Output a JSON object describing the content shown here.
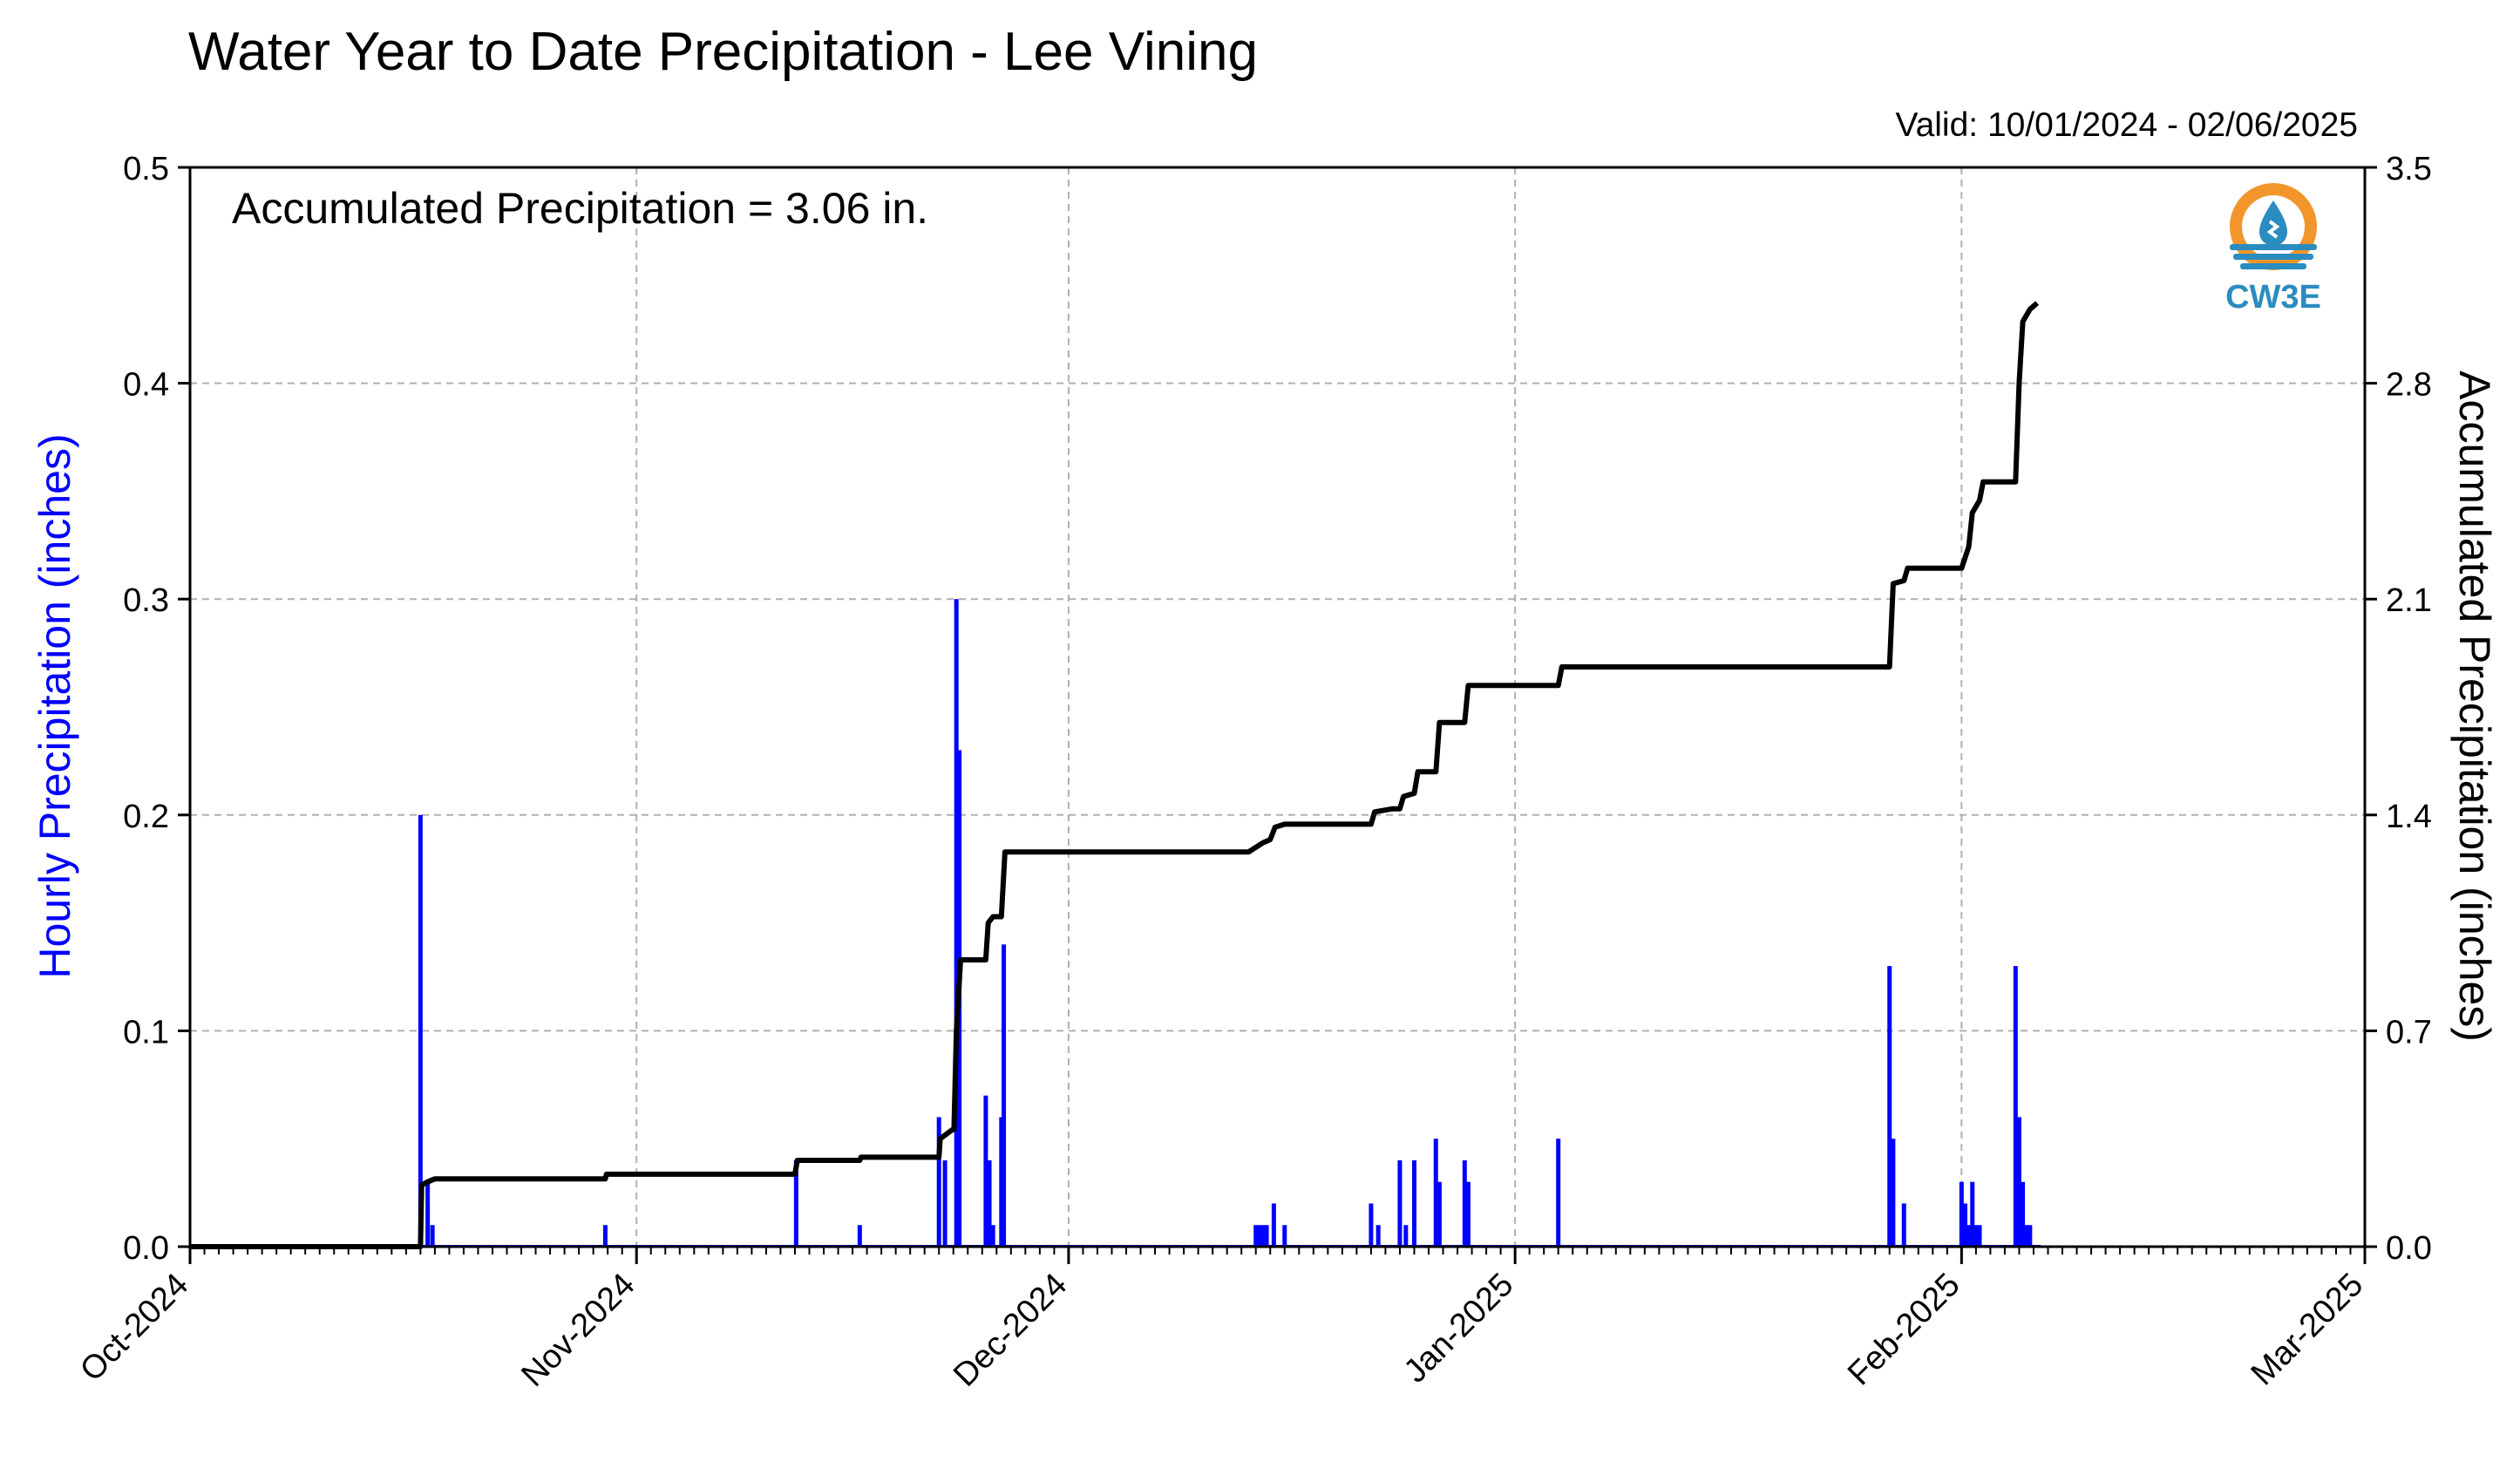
{
  "header": {
    "title": "Water Year to Date Precipitation - Lee Vining",
    "valid": "Valid: 10/01/2024 - 02/06/2025"
  },
  "annotation": "Accumulated Precipitation = 3.06 in.",
  "logo": {
    "text": "CW3E",
    "icon": "water-drop-sun-icon"
  },
  "chart_data": {
    "type": "bar+line",
    "x_range": [
      "2024-10-01",
      "2025-03-01"
    ],
    "x_ticks": [
      {
        "date": "2024-10-01",
        "label": "Oct-2024"
      },
      {
        "date": "2024-11-01",
        "label": "Nov-2024"
      },
      {
        "date": "2024-12-01",
        "label": "Dec-2024"
      },
      {
        "date": "2025-01-01",
        "label": "Jan-2025"
      },
      {
        "date": "2025-02-01",
        "label": "Feb-2025"
      },
      {
        "date": "2025-03-01",
        "label": "Mar-2025"
      }
    ],
    "ylabel_left": "Hourly Precipitation (inches)",
    "ylabel_right": "Accumulated Precipitation (inches)",
    "ylim_left": [
      0,
      0.5
    ],
    "ylim_right": [
      0,
      3.5
    ],
    "yticks_left": [
      "0.0",
      "0.1",
      "0.2",
      "0.3",
      "0.4",
      "0.5"
    ],
    "yticks_right": [
      "0.0",
      "0.7",
      "1.4",
      "2.1",
      "2.8",
      "3.5"
    ],
    "grid": true,
    "colors": {
      "hourly": "#0000ff",
      "accumulated": "#000000",
      "grid": "#b0b0b0"
    },
    "series": [
      {
        "name": "Hourly Precipitation",
        "axis": "left",
        "type": "bar",
        "points": [
          [
            "2024-10-17T00",
            0.2
          ],
          [
            "2024-10-17T12",
            0.03
          ],
          [
            "2024-10-17T20",
            0.01
          ],
          [
            "2024-10-29T20",
            0.01
          ],
          [
            "2024-11-12T02",
            0.04
          ],
          [
            "2024-11-16T12",
            0.01
          ],
          [
            "2024-11-22T00",
            0.06
          ],
          [
            "2024-11-22T10",
            0.04
          ],
          [
            "2024-11-23T05",
            0.3
          ],
          [
            "2024-11-23T10",
            0.23
          ],
          [
            "2024-11-25T06",
            0.07
          ],
          [
            "2024-11-25T12",
            0.04
          ],
          [
            "2024-11-25T18",
            0.01
          ],
          [
            "2024-11-26T08",
            0.06
          ],
          [
            "2024-11-26T12",
            0.14
          ],
          [
            "2024-12-14T00",
            0.01
          ],
          [
            "2024-12-14T06",
            0.01
          ],
          [
            "2024-12-14T12",
            0.01
          ],
          [
            "2024-12-14T18",
            0.01
          ],
          [
            "2024-12-15T06",
            0.02
          ],
          [
            "2024-12-16T00",
            0.01
          ],
          [
            "2024-12-22T00",
            0.02
          ],
          [
            "2024-12-22T12",
            0.01
          ],
          [
            "2024-12-24T00",
            0.04
          ],
          [
            "2024-12-24T10",
            0.01
          ],
          [
            "2024-12-25T00",
            0.04
          ],
          [
            "2024-12-26T12",
            0.05
          ],
          [
            "2024-12-26T18",
            0.03
          ],
          [
            "2024-12-28T12",
            0.04
          ],
          [
            "2024-12-28T18",
            0.03
          ],
          [
            "2025-01-04T00",
            0.05
          ],
          [
            "2025-01-27T00",
            0.13
          ],
          [
            "2025-01-27T06",
            0.05
          ],
          [
            "2025-01-28T00",
            0.02
          ],
          [
            "2025-02-01T00",
            0.03
          ],
          [
            "2025-02-01T06",
            0.02
          ],
          [
            "2025-02-01T12",
            0.01
          ],
          [
            "2025-02-01T18",
            0.03
          ],
          [
            "2025-02-02T00",
            0.01
          ],
          [
            "2025-02-02T06",
            0.01
          ],
          [
            "2025-02-04T18",
            0.13
          ],
          [
            "2025-02-05T00",
            0.06
          ],
          [
            "2025-02-05T06",
            0.03
          ],
          [
            "2025-02-05T12",
            0.01
          ],
          [
            "2025-02-05T18",
            0.01
          ]
        ]
      },
      {
        "name": "Accumulated Precipitation",
        "axis": "right",
        "type": "line",
        "points": [
          [
            "2024-10-01T00",
            0.0
          ],
          [
            "2024-10-17T00",
            0.0
          ],
          [
            "2024-10-17T02",
            0.2
          ],
          [
            "2024-10-17T12",
            0.21
          ],
          [
            "2024-10-18T00",
            0.22
          ],
          [
            "2024-10-29T20",
            0.22
          ],
          [
            "2024-10-29T22",
            0.235
          ],
          [
            "2024-11-12T00",
            0.235
          ],
          [
            "2024-11-12T04",
            0.28
          ],
          [
            "2024-11-16T12",
            0.28
          ],
          [
            "2024-11-16T14",
            0.29
          ],
          [
            "2024-11-22T00",
            0.29
          ],
          [
            "2024-11-22T02",
            0.35
          ],
          [
            "2024-11-22T23",
            0.38
          ],
          [
            "2024-11-23T01",
            0.38
          ],
          [
            "2024-11-23T05",
            0.7
          ],
          [
            "2024-11-23T12",
            0.93
          ],
          [
            "2024-11-25T06",
            0.93
          ],
          [
            "2024-11-25T10",
            1.05
          ],
          [
            "2024-11-25T18",
            1.07
          ],
          [
            "2024-11-26T08",
            1.07
          ],
          [
            "2024-11-26T14",
            1.28
          ],
          [
            "2024-12-13T12",
            1.28
          ],
          [
            "2024-12-14T12",
            1.31
          ],
          [
            "2024-12-15T00",
            1.32
          ],
          [
            "2024-12-15T08",
            1.36
          ],
          [
            "2024-12-16T00",
            1.37
          ],
          [
            "2024-12-22T00",
            1.37
          ],
          [
            "2024-12-22T06",
            1.41
          ],
          [
            "2024-12-23T12",
            1.42
          ],
          [
            "2024-12-24T00",
            1.42
          ],
          [
            "2024-12-24T06",
            1.46
          ],
          [
            "2024-12-25T00",
            1.47
          ],
          [
            "2024-12-25T06",
            1.54
          ],
          [
            "2024-12-26T12",
            1.54
          ],
          [
            "2024-12-26T18",
            1.7
          ],
          [
            "2024-12-28T12",
            1.7
          ],
          [
            "2024-12-28T18",
            1.82
          ],
          [
            "2025-01-04T00",
            1.82
          ],
          [
            "2025-01-04T06",
            1.88
          ],
          [
            "2025-01-27T00",
            1.88
          ],
          [
            "2025-01-27T06",
            2.15
          ],
          [
            "2025-01-28T00",
            2.16
          ],
          [
            "2025-01-28T06",
            2.2
          ],
          [
            "2025-02-01T00",
            2.2
          ],
          [
            "2025-02-01T12",
            2.27
          ],
          [
            "2025-02-01T18",
            2.38
          ],
          [
            "2025-02-02T06",
            2.42
          ],
          [
            "2025-02-02T12",
            2.48
          ],
          [
            "2025-02-04T18",
            2.48
          ],
          [
            "2025-02-05T00",
            2.8
          ],
          [
            "2025-02-05T06",
            3.0
          ],
          [
            "2025-02-05T18",
            3.04
          ],
          [
            "2025-02-06T06",
            3.06
          ]
        ]
      }
    ]
  }
}
